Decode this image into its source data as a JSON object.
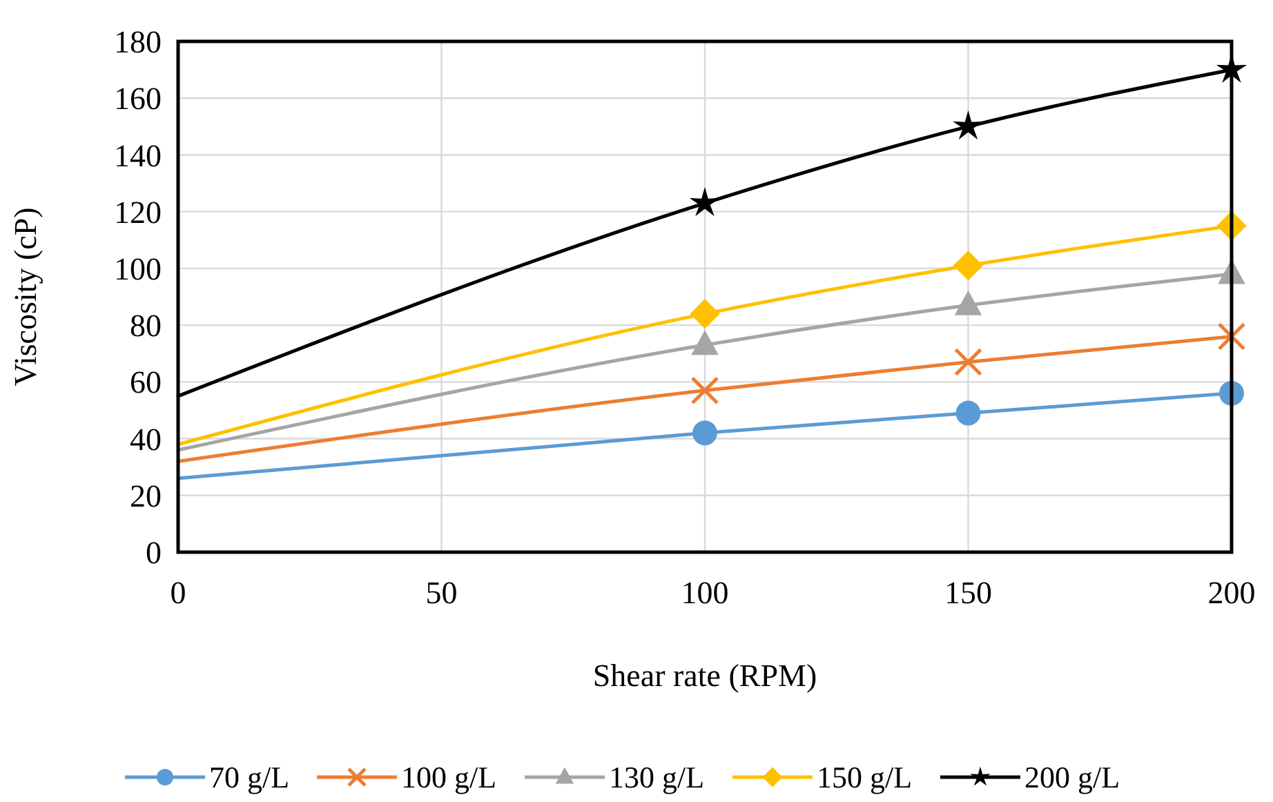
{
  "chart_data": {
    "type": "line",
    "xlabel": "Shear rate (RPM)",
    "ylabel": "Viscosity (cP)",
    "xlim": [
      0,
      200
    ],
    "xticks": [
      0,
      50,
      100,
      150,
      200
    ],
    "ylim": [
      0,
      180
    ],
    "yticks": [
      0,
      20,
      40,
      60,
      80,
      100,
      120,
      140,
      160,
      180
    ],
    "grid": true,
    "legend": "bottom",
    "line_style": "solid",
    "series": [
      {
        "color": "#5b9bd5",
        "x": [
          0,
          100,
          150,
          200
        ],
        "values": [
          26,
          42,
          49,
          56
        ]
      },
      {
        "color": "#ed7d31",
        "x": [
          0,
          100,
          150,
          200
        ],
        "values": [
          32,
          57,
          67,
          76
        ]
      },
      {
        "color": "#a5a5a5",
        "x": [
          0,
          100,
          150,
          200
        ],
        "values": [
          36,
          73,
          87,
          98
        ]
      },
      {
        "color": "#ffc000",
        "x": [
          0,
          100,
          150,
          200
        ],
        "values": [
          38,
          84,
          101,
          115
        ]
      },
      {
        "color": "#000000",
        "x": [
          0,
          100,
          150,
          200
        ],
        "values": [
          55,
          123,
          150,
          170
        ]
      },
      {
        "type": "scatter",
        "name": "70 g/L",
        "color": "#5b9bd5",
        "x": [
          100,
          150,
          200
        ],
        "values": [
          42,
          49,
          56
        ],
        "marker": "circle"
      },
      {
        "type": "scatter",
        "name": "100 g/L",
        "color": "#ed7d31",
        "x": [
          100,
          150,
          200
        ],
        "values": [
          57,
          67,
          76
        ],
        "marker": "cross"
      },
      {
        "type": "scatter",
        "name": "130 g/L",
        "color": "#a5a5a5",
        "x": [
          100,
          150,
          200
        ],
        "values": [
          73,
          87,
          98
        ],
        "marker": "triangle"
      },
      {
        "type": "scatter",
        "name": "150 g/L",
        "color": "#ffc000",
        "x": [
          100,
          150,
          200
        ],
        "values": [
          84,
          101,
          115
        ],
        "marker": "diamond"
      },
      {
        "type": "scatter",
        "name": "200 g/L",
        "color": "#000000",
        "x": [
          100,
          150,
          200
        ],
        "values": [
          123,
          150,
          170
        ],
        "marker": "star"
      }
    ]
  }
}
